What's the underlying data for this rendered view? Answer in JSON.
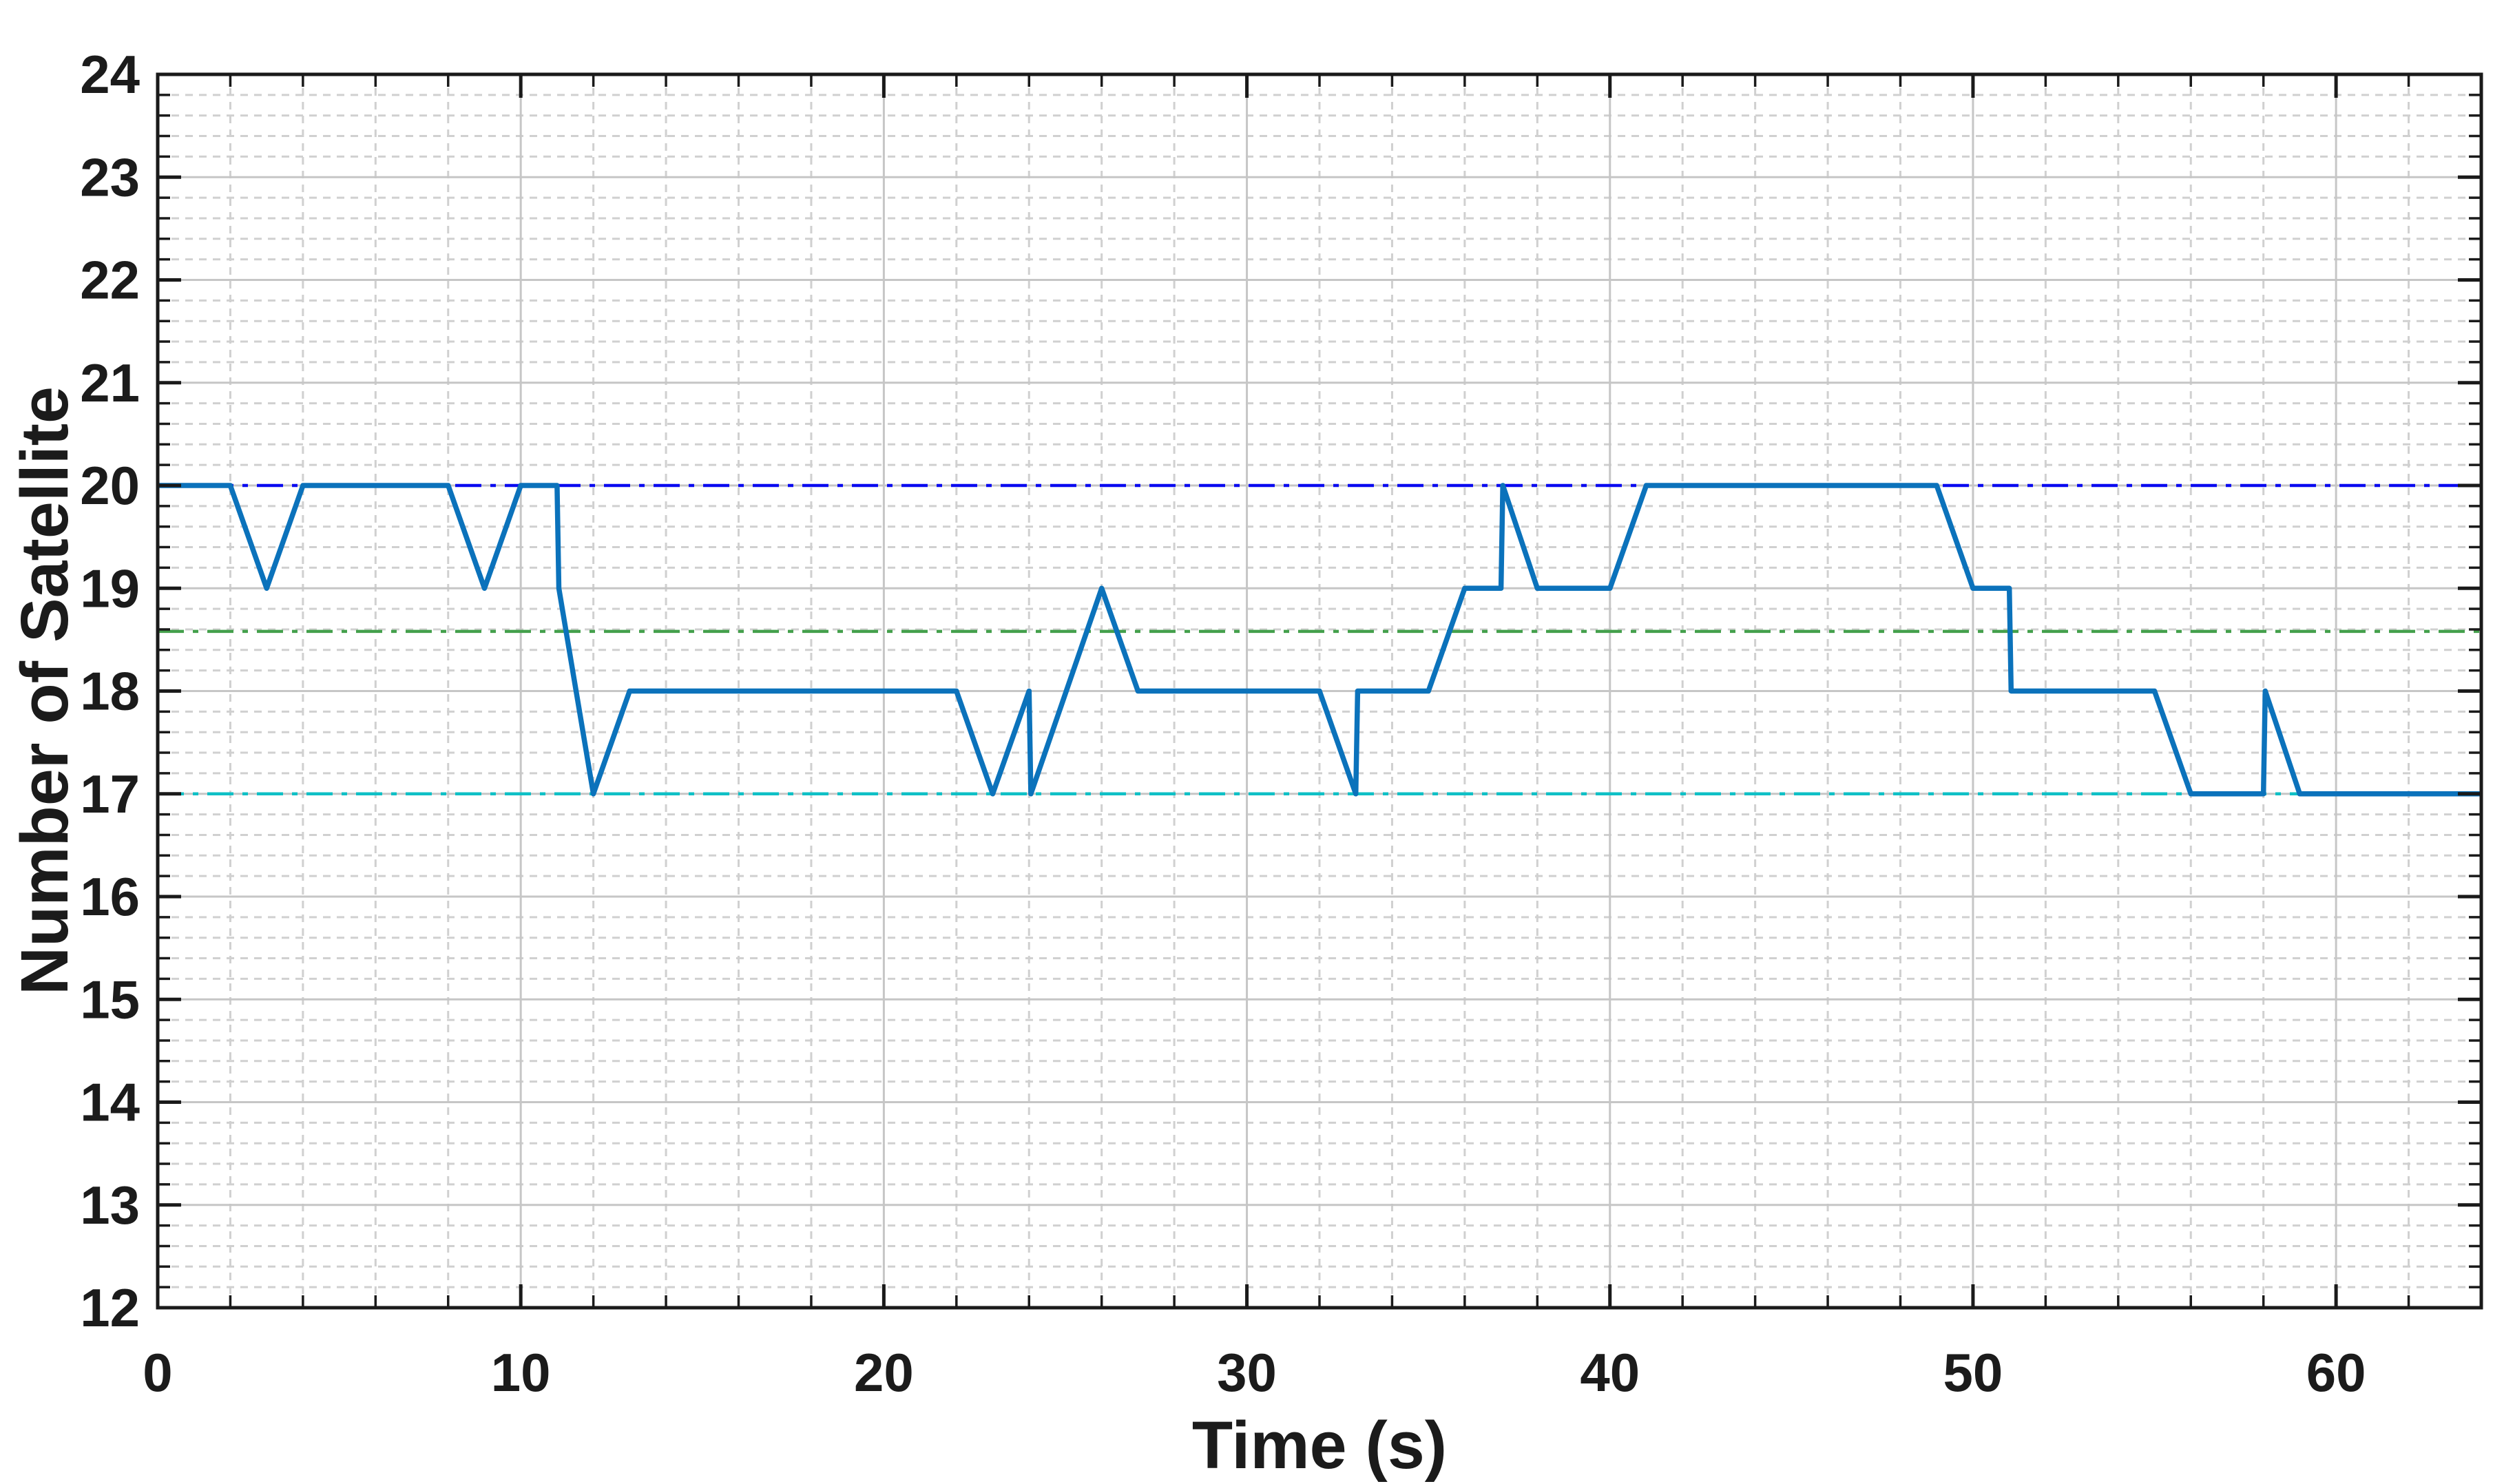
{
  "chart_data": {
    "type": "line",
    "title": "",
    "xlabel": "Time (s)",
    "ylabel": "Number of Satellite",
    "xlim": [
      0,
      64
    ],
    "ylim": [
      12,
      24
    ],
    "x_major_ticks": [
      0,
      10,
      20,
      30,
      40,
      50,
      60
    ],
    "y_major_ticks": [
      12,
      13,
      14,
      15,
      16,
      17,
      18,
      19,
      20,
      21,
      22,
      23,
      24
    ],
    "x_minor_step": 2,
    "y_minor_step": 0.2,
    "grid": {
      "major": "on",
      "minor": "on",
      "legend": "none"
    },
    "series": [
      {
        "name": "number-of-visible-satellites",
        "color": "#0b72bb",
        "line_width": 7.5,
        "points": [
          [
            0,
            20
          ],
          [
            2,
            20
          ],
          [
            3,
            19
          ],
          [
            4,
            20
          ],
          [
            8,
            20
          ],
          [
            9,
            19
          ],
          [
            10,
            20
          ],
          [
            11,
            20
          ],
          [
            11.05,
            19
          ],
          [
            12,
            17
          ],
          [
            13,
            18
          ],
          [
            22,
            18
          ],
          [
            23,
            17
          ],
          [
            24,
            18
          ],
          [
            24.05,
            17
          ],
          [
            26,
            19
          ],
          [
            27,
            18
          ],
          [
            32,
            18
          ],
          [
            33,
            17
          ],
          [
            33.05,
            18
          ],
          [
            35,
            18
          ],
          [
            36,
            19
          ],
          [
            37,
            19
          ],
          [
            37.05,
            20
          ],
          [
            38,
            19
          ],
          [
            40,
            19
          ],
          [
            41,
            20
          ],
          [
            49,
            20
          ],
          [
            50,
            19
          ],
          [
            51,
            19
          ],
          [
            51.05,
            18
          ],
          [
            55,
            18
          ],
          [
            56,
            17
          ],
          [
            58,
            17
          ],
          [
            58.05,
            18
          ],
          [
            59,
            17
          ],
          [
            64,
            17
          ]
        ]
      }
    ],
    "reference_lines": [
      {
        "name": "max-satellites-line",
        "value": 20,
        "color": "#0a0af0",
        "style": "dash-dot"
      },
      {
        "name": "mean-satellites-line",
        "value": 18.58,
        "color": "#44a04c",
        "style": "dash-dot"
      },
      {
        "name": "min-satellites-line",
        "value": 17,
        "color": "#0ec0c6",
        "style": "dash-dot"
      }
    ],
    "style": {
      "background": "#ffffff",
      "axes_color": "#1a1a1a",
      "tick_label_color": "#1b1b1b",
      "grid_major_color": "#c6c6c6",
      "grid_minor_color": "#d0d0d0"
    }
  }
}
